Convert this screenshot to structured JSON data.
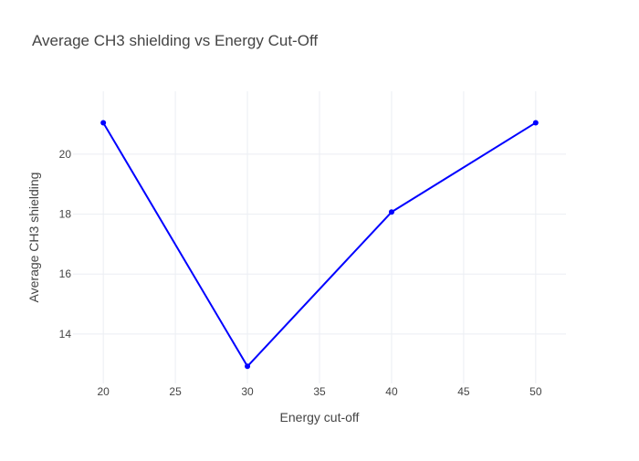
{
  "chart_data": {
    "type": "line",
    "title": "Average CH3 shielding vs Energy Cut-Off",
    "xlabel": "Energy cut-off",
    "ylabel": "Average CH3 shielding",
    "x": [
      20,
      30,
      40,
      50
    ],
    "series": [
      {
        "values": [
          21.05,
          12.92,
          18.07,
          21.05
        ],
        "color": "#0000ff",
        "mode": "lines+markers"
      }
    ],
    "xlim": [
      17.9,
      52.1
    ],
    "ylim": [
      12.35,
      22.1
    ],
    "xticks": [
      20,
      25,
      30,
      35,
      40,
      45,
      50
    ],
    "yticks": [
      14,
      16,
      18,
      20
    ],
    "grid": true,
    "legend": false,
    "background": "#ffffff",
    "grid_color": "#ebeef3"
  }
}
